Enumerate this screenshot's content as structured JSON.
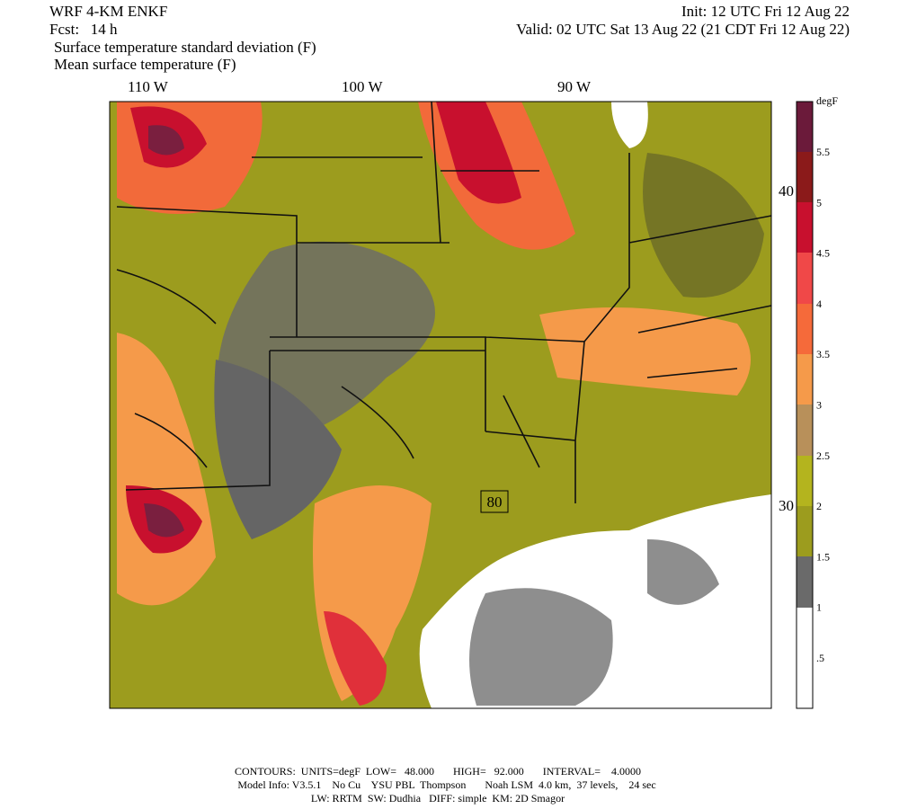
{
  "header": {
    "model": "WRF 4-KM ENKF",
    "init": "Init: 12 UTC Fri 12 Aug 22",
    "forecast": "Fcst:   14 h",
    "valid": "Valid: 02 UTC Sat 13 Aug 22 (21 CDT Fri 12 Aug 22)",
    "field_1": "Surface temperature standard deviation (F)",
    "field_2": "Mean surface temperature (F)"
  },
  "map": {
    "longitude_labels": [
      "110 W",
      "100 W",
      "90 W"
    ],
    "latitude_labels": [
      "40 N",
      "30 N"
    ],
    "contour_label": "80"
  },
  "colorbar": {
    "unit": "degF",
    "labels": [
      "5.5",
      "5",
      "4.5",
      "4",
      "3.5",
      "3",
      "2.5",
      "2",
      "1.5",
      "1",
      ".5"
    ]
  },
  "footer": {
    "line_1": "CONTOURS:  UNITS=degF  LOW=   48.000       HIGH=   92.000       INTERVAL=    4.0000",
    "line_2": "Model Info: V3.5.1    No Cu    YSU PBL  Thompson       Noah LSM  4.0 km,  37 levels,    24 sec",
    "line_3": "LW: RRTM  SW: Dudhia   DIFF: simple  KM: 2D Smagor"
  }
}
